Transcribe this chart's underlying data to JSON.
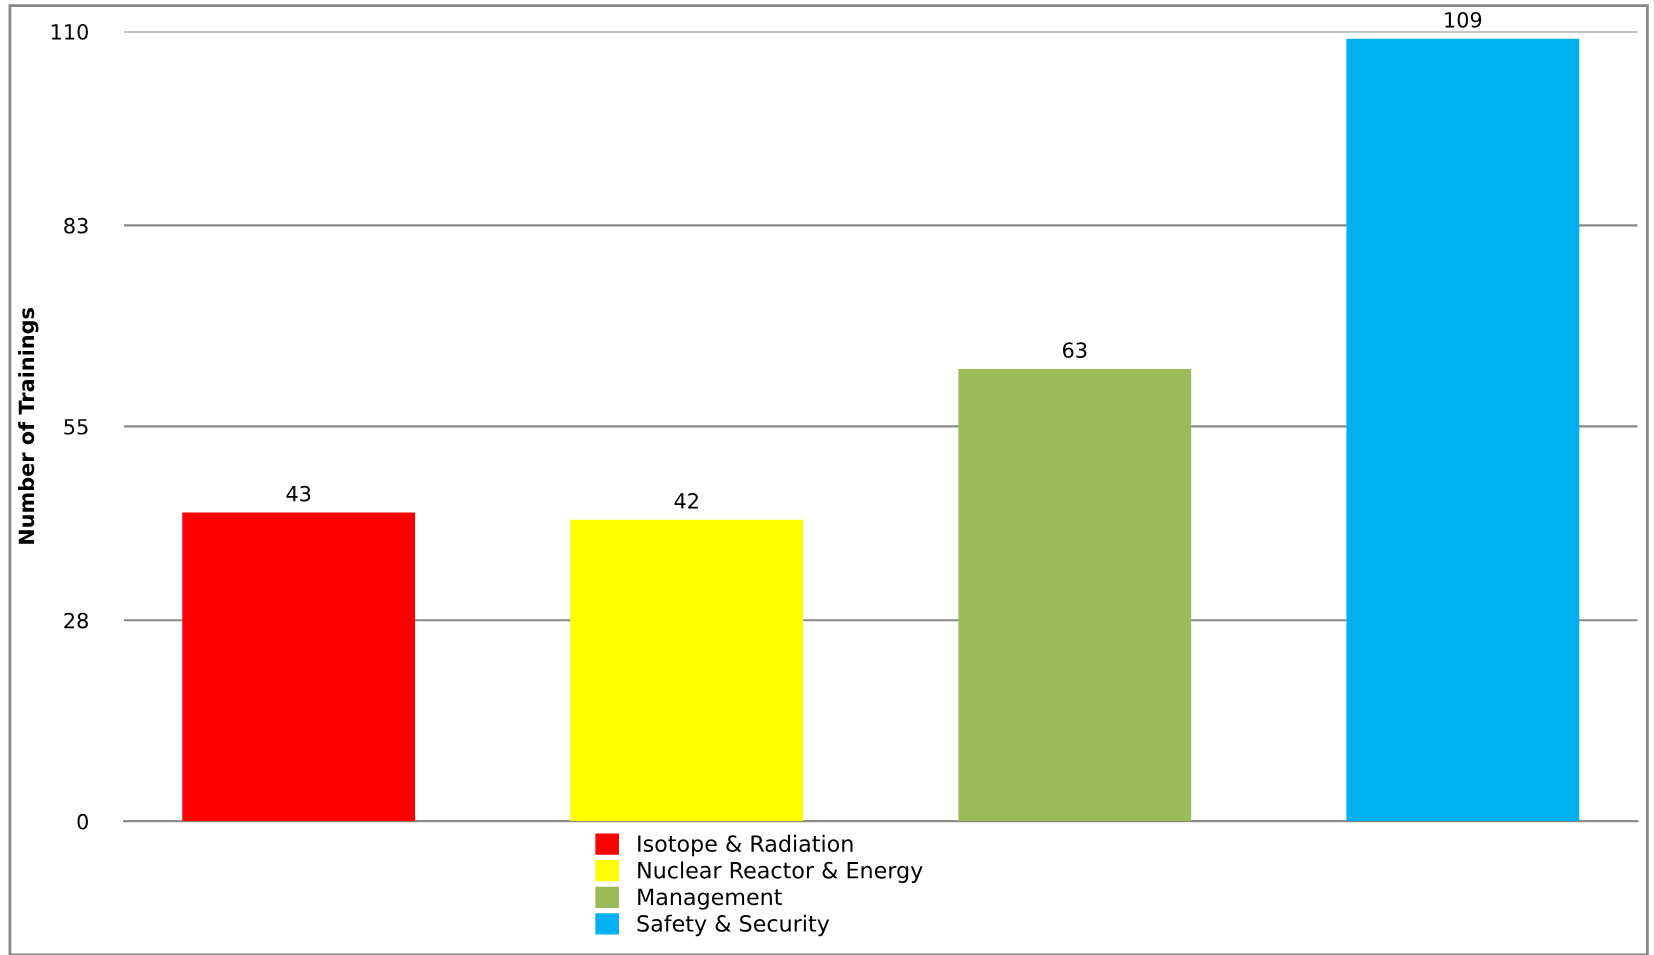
{
  "chart_data": {
    "type": "bar",
    "ylabel": "Number of Trainings",
    "categories": [
      null,
      null,
      null,
      null
    ],
    "series": [
      {
        "name": "Isotope & Radiation",
        "color": "#ff0000",
        "values": [
          43,
          null,
          null,
          null
        ]
      },
      {
        "name": "Nuclear Reactor & Energy",
        "color": "#ffff00",
        "values": [
          null,
          42,
          null,
          null
        ]
      },
      {
        "name": "Management",
        "color": "#9bbb59",
        "values": [
          null,
          null,
          63,
          null
        ]
      },
      {
        "name": "Safety & Security",
        "color": "#00b0f0",
        "values": [
          null,
          null,
          null,
          109
        ]
      }
    ],
    "ylim": [
      0,
      110
    ],
    "yticks": [
      0,
      28,
      55,
      83,
      110
    ],
    "grid": "y",
    "legend": "bottom",
    "data_labels": true
  }
}
